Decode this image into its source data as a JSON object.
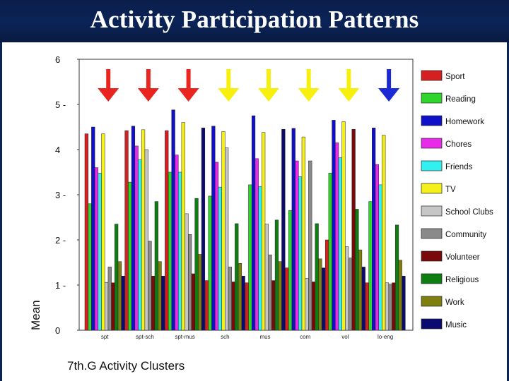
{
  "slide": {
    "title": "Activity Participation Patterns"
  },
  "chart_data": {
    "type": "bar",
    "title": "",
    "xlabel": "7th.G Activity Clusters",
    "ylabel": "Mean",
    "ylim": [
      0,
      6
    ],
    "yticks": [
      {
        "value": 0,
        "label": "0"
      },
      {
        "value": 1,
        "label": "1 -"
      },
      {
        "value": 2,
        "label": "2 -"
      },
      {
        "value": 3,
        "label": "3 -"
      },
      {
        "value": 4,
        "label": "4"
      },
      {
        "value": 5,
        "label": "5 -"
      },
      {
        "value": 6,
        "label": "6"
      }
    ],
    "grid": false,
    "legend_position": "right",
    "categories": [
      "spt",
      "spt-sch",
      "spt-mus",
      "sch",
      "mus",
      "com",
      "vol",
      "lo-eng"
    ],
    "category_arrows": [
      {
        "color": "#e8261f",
        "cluster": "spt"
      },
      {
        "color": "#e8261f",
        "cluster": "spt-sch"
      },
      {
        "color": "#e8261f",
        "cluster": "spt-mus"
      },
      {
        "color": "#f7f00e",
        "cluster": "sch"
      },
      {
        "color": "#f7f00e",
        "cluster": "mus"
      },
      {
        "color": "#f7f00e",
        "cluster": "com"
      },
      {
        "color": "#f7f00e",
        "cluster": "vol"
      },
      {
        "color": "#1c2ad6",
        "cluster": "lo-eng"
      }
    ],
    "series": [
      {
        "name": "Sport",
        "color": "#d42020",
        "values": [
          4.35,
          4.42,
          4.42,
          1.1,
          1.05,
          1.38,
          2.0,
          1.05
        ]
      },
      {
        "name": "Reading",
        "color": "#2fd62a",
        "values": [
          2.8,
          3.28,
          3.5,
          2.97,
          3.22,
          2.65,
          3.48,
          2.85
        ]
      },
      {
        "name": "Homework",
        "color": "#1010c8",
        "values": [
          4.5,
          4.52,
          4.88,
          4.52,
          4.75,
          4.47,
          4.65,
          4.48
        ]
      },
      {
        "name": "Chores",
        "color": "#e82be8",
        "values": [
          3.6,
          4.08,
          3.88,
          3.72,
          3.8,
          3.75,
          4.15,
          3.67
        ]
      },
      {
        "name": "Friends",
        "color": "#33f0f0",
        "values": [
          3.48,
          3.78,
          3.5,
          3.17,
          3.18,
          3.4,
          3.82,
          3.22
        ]
      },
      {
        "name": "TV",
        "color": "#f5f01a",
        "values": [
          4.35,
          4.44,
          4.6,
          4.4,
          4.38,
          4.28,
          4.62,
          4.32
        ]
      },
      {
        "name": "School Clubs",
        "color": "#c6c6c6",
        "values": [
          1.06,
          4.0,
          2.58,
          4.04,
          2.35,
          1.15,
          1.85,
          1.05
        ]
      },
      {
        "name": "Community",
        "color": "#8a8a8a",
        "values": [
          1.4,
          1.97,
          2.12,
          1.4,
          1.67,
          3.75,
          1.6,
          1.02
        ]
      },
      {
        "name": "Volunteer",
        "color": "#7a0a0a",
        "values": [
          1.05,
          1.2,
          1.25,
          1.07,
          1.1,
          1.07,
          4.45,
          1.05
        ]
      },
      {
        "name": "Religious",
        "color": "#0e7d12",
        "values": [
          2.35,
          2.85,
          2.92,
          2.36,
          2.44,
          2.36,
          2.68,
          2.33
        ]
      },
      {
        "name": "Work",
        "color": "#7f7f10",
        "values": [
          1.52,
          1.52,
          1.68,
          1.48,
          1.52,
          1.58,
          1.78,
          1.55
        ]
      },
      {
        "name": "Music",
        "color": "#0a0a70",
        "values": [
          1.2,
          1.2,
          4.48,
          1.2,
          4.45,
          1.38,
          1.4,
          1.2
        ]
      }
    ]
  }
}
